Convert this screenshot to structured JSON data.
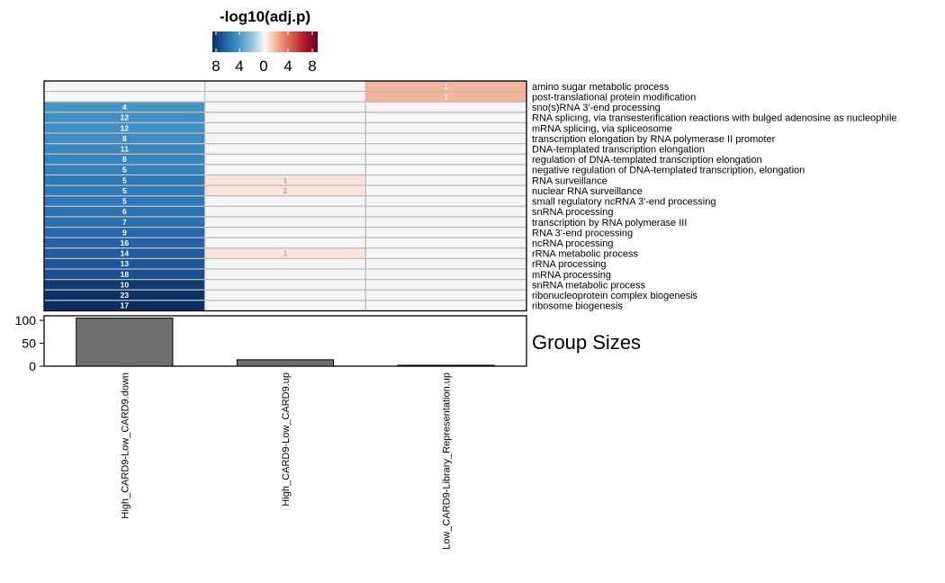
{
  "chart_data": [
    {
      "type": "heatmap",
      "legend": {
        "title": "-log10(adj.p)",
        "ticks": [
          "8",
          "4",
          "0",
          "4",
          "8"
        ],
        "colors": [
          "#0b2f63",
          "#2166ac",
          "#4393c3",
          "#92c5de",
          "#f7f7f7",
          "#f4a582",
          "#d6604d",
          "#b2182b",
          "#67001f"
        ],
        "placement": "top"
      },
      "columns": [
        "High_CARD9-Low_CARD9.down",
        "High_CARD9-Low_CARD9.up",
        "Low_CARD9-Library_Representation.up"
      ],
      "rows": [
        {
          "label": "amino sugar metabolic process",
          "cells": [
            null,
            null,
            "1"
          ],
          "colors": [
            "#f5f5f5",
            "#f5f5f5",
            "#f4b39a"
          ]
        },
        {
          "label": "post-translational protein modification",
          "cells": [
            null,
            null,
            "1"
          ],
          "colors": [
            "#f5f5f5",
            "#f5f5f5",
            "#f4b39a"
          ]
        },
        {
          "label": "sno(s)RNA 3'-end processing",
          "cells": [
            "4",
            null,
            null
          ],
          "colors": [
            "#4693c6",
            "#f5f5f5",
            "#f5f5f5"
          ]
        },
        {
          "label": "RNA splicing, via transesterification reactions with bulged adenosine as nucleophile",
          "cells": [
            "12",
            null,
            null
          ],
          "colors": [
            "#428fc4",
            "#f5f5f5",
            "#f5f5f5"
          ]
        },
        {
          "label": "mRNA splicing, via spliceosome",
          "cells": [
            "12",
            null,
            null
          ],
          "colors": [
            "#428fc4",
            "#f5f5f5",
            "#f5f5f5"
          ]
        },
        {
          "label": "transcription elongation by RNA polymerase II promoter",
          "cells": [
            "8",
            null,
            null
          ],
          "colors": [
            "#3f8cc2",
            "#f5f5f5",
            "#f5f5f5"
          ]
        },
        {
          "label": "DNA-templated transcription elongation",
          "cells": [
            "11",
            null,
            null
          ],
          "colors": [
            "#3b87bf",
            "#f5f5f5",
            "#f5f5f5"
          ]
        },
        {
          "label": "regulation of DNA-templated transcription elongation",
          "cells": [
            "8",
            null,
            null
          ],
          "colors": [
            "#3885bd",
            "#f5f5f5",
            "#f5f5f5"
          ]
        },
        {
          "label": "negative regulation of DNA-templated transcription, elongation",
          "cells": [
            "5",
            null,
            null
          ],
          "colors": [
            "#3582bb",
            "#f5f5f5",
            "#f5f5f5"
          ]
        },
        {
          "label": "RNA surveillance",
          "cells": [
            "5",
            "1",
            null
          ],
          "colors": [
            "#2f7ab6",
            "#fbe3d9",
            "#f5f5f5"
          ]
        },
        {
          "label": "nuclear RNA surveillance",
          "cells": [
            "5",
            "1",
            null
          ],
          "colors": [
            "#2f7ab6",
            "#fbe3d9",
            "#f5f5f5"
          ]
        },
        {
          "label": "small regulatory ncRNA 3'-end processing",
          "cells": [
            "5",
            null,
            null
          ],
          "colors": [
            "#2e77b4",
            "#f5f5f5",
            "#f5f5f5"
          ]
        },
        {
          "label": "snRNA processing",
          "cells": [
            "6",
            null,
            null
          ],
          "colors": [
            "#2b72b0",
            "#f5f5f5",
            "#f5f5f5"
          ]
        },
        {
          "label": "transcription by RNA polymerase III",
          "cells": [
            "7",
            null,
            null
          ],
          "colors": [
            "#2a6fae",
            "#f5f5f5",
            "#f5f5f5"
          ]
        },
        {
          "label": "RNA 3'-end processing",
          "cells": [
            "9",
            null,
            null
          ],
          "colors": [
            "#2669aa",
            "#f5f5f5",
            "#f5f5f5"
          ]
        },
        {
          "label": "ncRNA processing",
          "cells": [
            "16",
            null,
            null
          ],
          "colors": [
            "#2462a4",
            "#f5f5f5",
            "#f5f5f5"
          ]
        },
        {
          "label": "rRNA metabolic process",
          "cells": [
            "14",
            "1",
            null
          ],
          "colors": [
            "#215b9e",
            "#fbe3d9",
            "#f5f5f5"
          ]
        },
        {
          "label": "rRNA processing",
          "cells": [
            "13",
            null,
            null
          ],
          "colors": [
            "#1f5699",
            "#f5f5f5",
            "#f5f5f5"
          ]
        },
        {
          "label": "mRNA processing",
          "cells": [
            "18",
            null,
            null
          ],
          "colors": [
            "#1c4f91",
            "#f5f5f5",
            "#f5f5f5"
          ]
        },
        {
          "label": "snRNA metabolic process",
          "cells": [
            "10",
            null,
            null
          ],
          "colors": [
            "#123b73",
            "#f5f5f5",
            "#f5f5f5"
          ]
        },
        {
          "label": "ribonucleoprotein complex biogenesis",
          "cells": [
            "23",
            null,
            null
          ],
          "colors": [
            "#0d3266",
            "#f5f5f5",
            "#f5f5f5"
          ]
        },
        {
          "label": "ribosome biogenesis",
          "cells": [
            "17",
            null,
            null
          ],
          "colors": [
            "#0a2c5e",
            "#f5f5f5",
            "#f5f5f5"
          ]
        }
      ],
      "grid": true
    },
    {
      "type": "bar",
      "title": "Group Sizes",
      "categories": [
        "High_CARD9-Low_CARD9.down",
        "High_CARD9-Low_CARD9.up",
        "Low_CARD9-Library_Representation.up"
      ],
      "values": [
        105,
        14,
        2
      ],
      "yticks": [
        0,
        50,
        100
      ],
      "ylim": [
        0,
        110
      ],
      "bar_color": "#707070"
    }
  ]
}
